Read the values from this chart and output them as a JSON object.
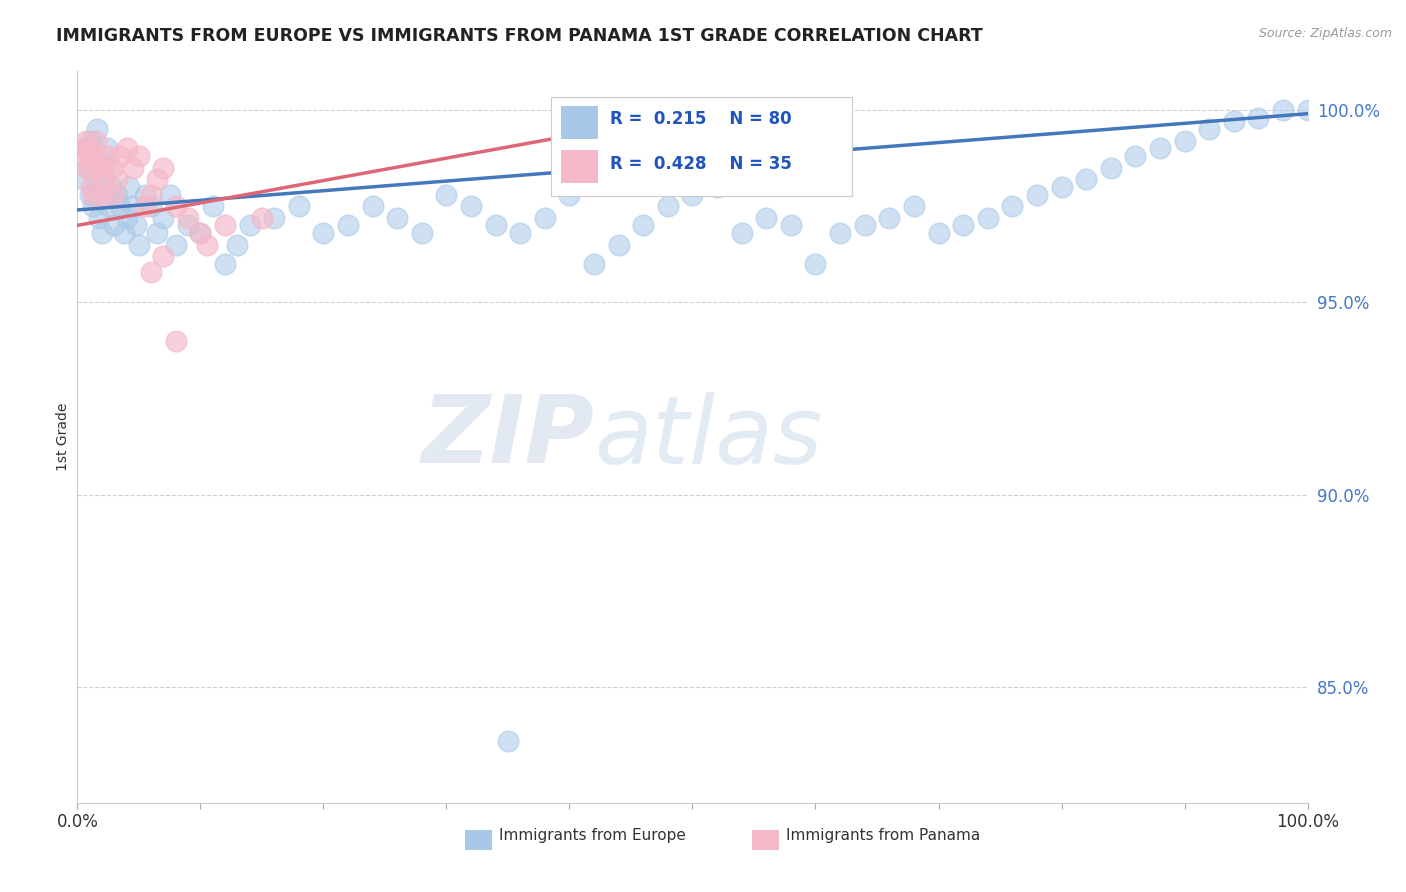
{
  "title": "IMMIGRANTS FROM EUROPE VS IMMIGRANTS FROM PANAMA 1ST GRADE CORRELATION CHART",
  "source": "Source: ZipAtlas.com",
  "ylabel": "1st Grade",
  "xlim": [
    0.0,
    1.0
  ],
  "ylim": [
    0.82,
    1.01
  ],
  "yticks": [
    0.85,
    0.9,
    0.95,
    1.0
  ],
  "ytick_labels": [
    "85.0%",
    "90.0%",
    "95.0%",
    "100.0%"
  ],
  "xticks": [
    0.0,
    0.1,
    0.2,
    0.3,
    0.4,
    0.5,
    0.6,
    0.7,
    0.8,
    0.9,
    1.0
  ],
  "xtick_labels": [
    "0.0%",
    "",
    "",
    "",
    "",
    "",
    "",
    "",
    "",
    "",
    "100.0%"
  ],
  "blue_R": 0.215,
  "blue_N": 80,
  "pink_R": 0.428,
  "pink_N": 35,
  "blue_color": "#a8c8e8",
  "pink_color": "#f5b8c8",
  "blue_line_color": "#4477bb",
  "pink_line_color": "#dd6677",
  "background_color": "#ffffff",
  "grid_color": "#cccccc",
  "watermark_zip": "ZIP",
  "watermark_atlas": "atlas",
  "blue_line_x0": 0.0,
  "blue_line_y0": 0.974,
  "blue_line_x1": 1.0,
  "blue_line_y1": 0.999,
  "pink_line_x0": 0.0,
  "pink_line_y0": 0.97,
  "pink_line_x1": 0.55,
  "pink_line_y1": 1.002,
  "blue_x": [
    0.005,
    0.007,
    0.009,
    0.01,
    0.011,
    0.012,
    0.013,
    0.015,
    0.016,
    0.018,
    0.02,
    0.022,
    0.024,
    0.025,
    0.027,
    0.03,
    0.032,
    0.035,
    0.038,
    0.04,
    0.042,
    0.045,
    0.048,
    0.05,
    0.055,
    0.06,
    0.065,
    0.07,
    0.075,
    0.08,
    0.09,
    0.1,
    0.11,
    0.12,
    0.13,
    0.14,
    0.16,
    0.18,
    0.2,
    0.22,
    0.24,
    0.26,
    0.28,
    0.3,
    0.32,
    0.34,
    0.36,
    0.38,
    0.4,
    0.42,
    0.44,
    0.46,
    0.48,
    0.5,
    0.52,
    0.54,
    0.56,
    0.58,
    0.6,
    0.62,
    0.64,
    0.66,
    0.68,
    0.7,
    0.72,
    0.74,
    0.76,
    0.78,
    0.8,
    0.82,
    0.84,
    0.86,
    0.88,
    0.9,
    0.92,
    0.94,
    0.96,
    0.98,
    1.0,
    0.35
  ],
  "blue_y": [
    0.982,
    0.99,
    0.985,
    0.978,
    0.992,
    0.988,
    0.975,
    0.98,
    0.995,
    0.972,
    0.968,
    0.985,
    0.99,
    0.975,
    0.98,
    0.97,
    0.978,
    0.975,
    0.968,
    0.972,
    0.98,
    0.975,
    0.97,
    0.965,
    0.978,
    0.975,
    0.968,
    0.972,
    0.978,
    0.965,
    0.97,
    0.968,
    0.975,
    0.96,
    0.965,
    0.97,
    0.972,
    0.975,
    0.968,
    0.97,
    0.975,
    0.972,
    0.968,
    0.978,
    0.975,
    0.97,
    0.968,
    0.972,
    0.978,
    0.96,
    0.965,
    0.97,
    0.975,
    0.978,
    0.98,
    0.968,
    0.972,
    0.97,
    0.96,
    0.968,
    0.97,
    0.972,
    0.975,
    0.968,
    0.97,
    0.972,
    0.975,
    0.978,
    0.98,
    0.982,
    0.985,
    0.988,
    0.99,
    0.992,
    0.995,
    0.997,
    0.998,
    1.0,
    1.0,
    0.836
  ],
  "pink_x": [
    0.004,
    0.006,
    0.007,
    0.008,
    0.009,
    0.01,
    0.011,
    0.012,
    0.013,
    0.015,
    0.016,
    0.018,
    0.02,
    0.022,
    0.025,
    0.028,
    0.03,
    0.032,
    0.035,
    0.04,
    0.045,
    0.05,
    0.055,
    0.06,
    0.065,
    0.07,
    0.08,
    0.09,
    0.1,
    0.12,
    0.15,
    0.06,
    0.07,
    0.105,
    0.08
  ],
  "pink_y": [
    0.99,
    0.988,
    0.992,
    0.985,
    0.99,
    0.988,
    0.98,
    0.985,
    0.978,
    0.992,
    0.988,
    0.985,
    0.978,
    0.982,
    0.988,
    0.985,
    0.978,
    0.982,
    0.988,
    0.99,
    0.985,
    0.988,
    0.975,
    0.978,
    0.982,
    0.985,
    0.975,
    0.972,
    0.968,
    0.97,
    0.972,
    0.958,
    0.962,
    0.965,
    0.94
  ]
}
